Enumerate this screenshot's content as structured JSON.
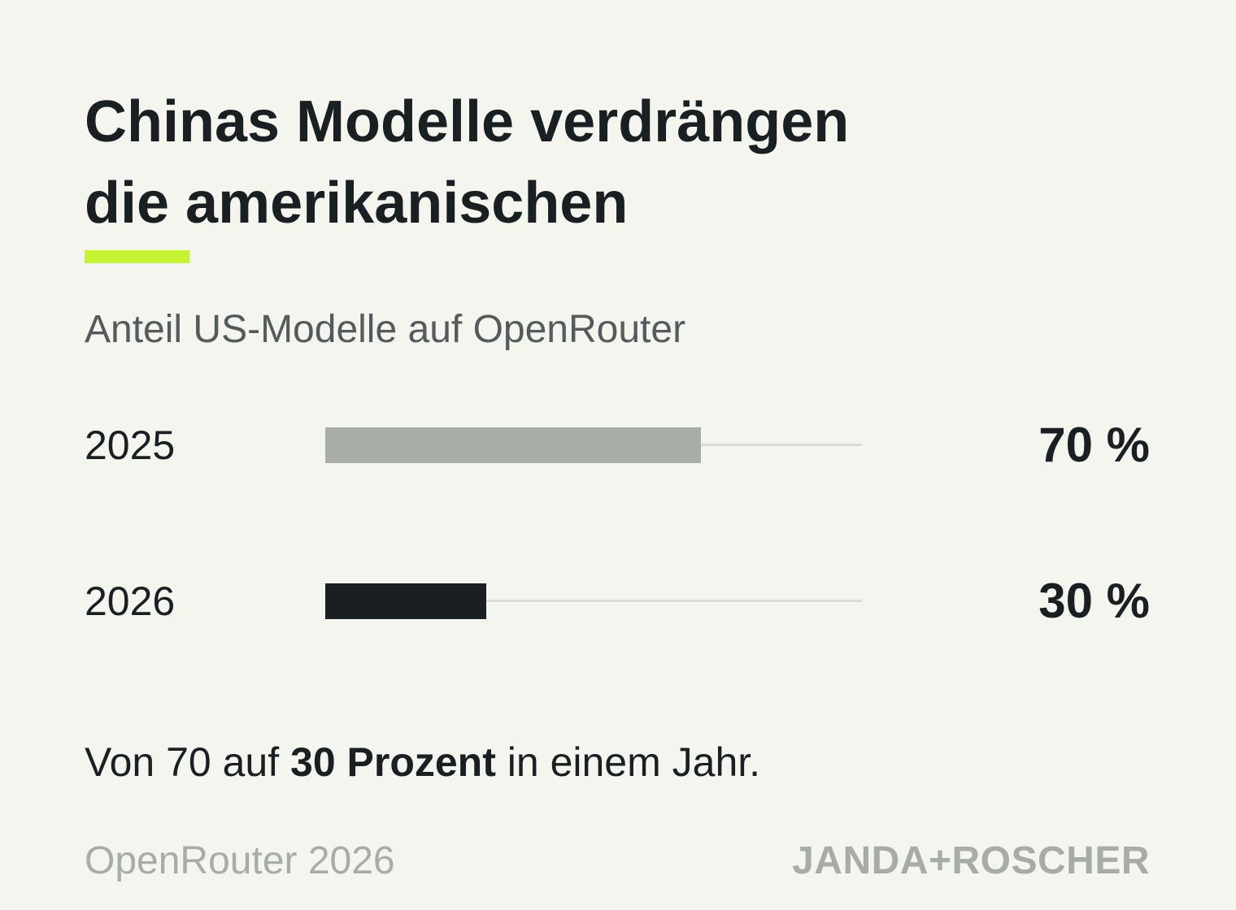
{
  "colors": {
    "accent": "#c6f432",
    "bar_2025": "#a9ada7",
    "bar_2026": "#1a2022",
    "track": "#dcdcd6"
  },
  "title": {
    "line1": "Chinas Modelle verdrängen",
    "line2": "die amerikanischen"
  },
  "subtitle": "Anteil US-Modelle auf OpenRouter",
  "chart_data": {
    "type": "bar",
    "orientation": "horizontal",
    "categories": [
      "2025",
      "2026"
    ],
    "values": [
      70,
      30
    ],
    "value_labels": [
      "70 %",
      "30 %"
    ],
    "xlim": [
      0,
      100
    ],
    "grid": false,
    "legend": "none",
    "title": "Anteil US-Modelle auf OpenRouter"
  },
  "summary": {
    "prefix": "Von 70 auf ",
    "highlight": "30 Prozent",
    "suffix": " in einem Jahr."
  },
  "footer": {
    "source": "OpenRouter 2026",
    "brand": "JANDA+ROSCHER"
  }
}
